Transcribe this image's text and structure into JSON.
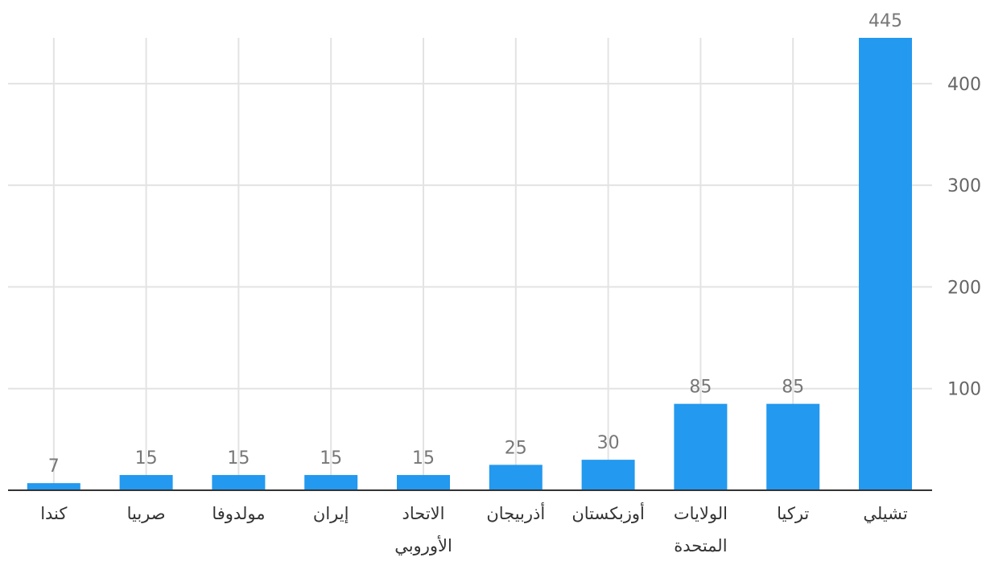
{
  "chart_data": {
    "type": "bar",
    "categories": [
      "تشيلي",
      "تركيا",
      "الولايات المتحدة",
      "أوزبكستان",
      "أذربيجان",
      "الاتحاد الأوروبي",
      "إيران",
      "مولدوفا",
      "صربيا",
      "كندا"
    ],
    "category_lines": [
      [
        "تشيلي"
      ],
      [
        "تركيا"
      ],
      [
        "الولايات",
        "المتحدة"
      ],
      [
        "أوزبكستان"
      ],
      [
        "أذربيجان"
      ],
      [
        "الاتحاد",
        "الأوروبي"
      ],
      [
        "إيران"
      ],
      [
        "مولدوفا"
      ],
      [
        "صربيا"
      ],
      [
        "كندا"
      ]
    ],
    "values": [
      445,
      85,
      85,
      30,
      25,
      15,
      15,
      15,
      15,
      7
    ],
    "value_labels": [
      "445",
      "85",
      "85",
      "30",
      "25",
      "15",
      "15",
      "15",
      "15",
      "7"
    ],
    "y_ticks": [
      100,
      200,
      300,
      400
    ],
    "ylim": [
      0,
      445
    ],
    "grid": true,
    "y_axis_side": "right",
    "x_direction": "right-to-left",
    "bar_color": "#2399ef",
    "grid_color": "#e3e3e3",
    "title": "",
    "xlabel": "",
    "ylabel": ""
  }
}
